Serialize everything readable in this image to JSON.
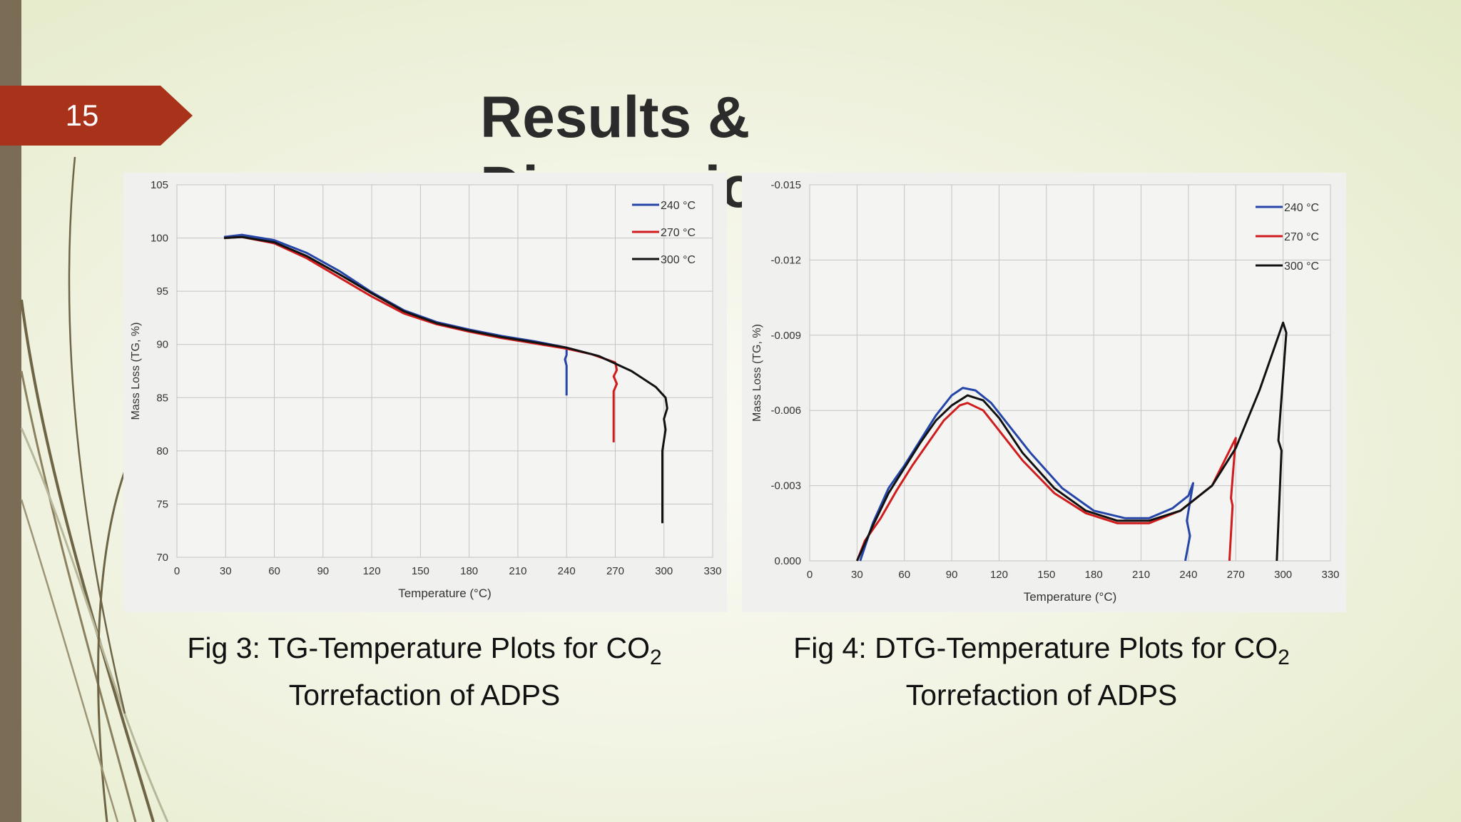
{
  "slide": {
    "number": "15",
    "title": "Results & Discussion"
  },
  "colors": {
    "accent_tab": "#a8321a",
    "left_bar": "#7a6c55",
    "series_240": "#2545a8",
    "series_270": "#d01c1c",
    "series_300": "#111111"
  },
  "captions": [
    {
      "prefix": "Fig 3: TG-Temperature Plots for CO",
      "sub": "2",
      "line2": "Torrefaction of ADPS"
    },
    {
      "prefix": "Fig 4: DTG-Temperature Plots for CO",
      "sub": "2",
      "line2": "Torrefaction of ADPS"
    }
  ],
  "chart_data": [
    {
      "type": "line",
      "xlabel": "Temperature (°C)",
      "ylabel": "Mass Loss (TG, %)",
      "xlim": [
        0,
        330
      ],
      "ylim": [
        70,
        105
      ],
      "xticks": [
        0,
        30,
        60,
        90,
        120,
        150,
        180,
        210,
        240,
        270,
        300,
        330
      ],
      "yticks": [
        70,
        75,
        80,
        85,
        90,
        95,
        100,
        105
      ],
      "tick_decimals": 0,
      "grid": true,
      "legend": "top-right",
      "series": [
        {
          "name": "240 °C",
          "color": "#2545a8",
          "x": [
            29,
            40,
            60,
            80,
            100,
            120,
            140,
            160,
            180,
            200,
            220,
            240,
            240,
            239,
            240,
            240
          ],
          "y": [
            100.1,
            100.3,
            99.8,
            98.6,
            96.9,
            94.9,
            93.2,
            92.1,
            91.4,
            90.8,
            90.3,
            89.7,
            89.0,
            88.6,
            88.0,
            85.2
          ]
        },
        {
          "name": "270 °C",
          "color": "#d01c1c",
          "x": [
            29,
            40,
            60,
            80,
            100,
            120,
            140,
            160,
            180,
            200,
            220,
            240,
            255,
            270,
            271,
            269,
            271,
            269,
            269
          ],
          "y": [
            100.0,
            100.1,
            99.5,
            98.1,
            96.3,
            94.5,
            92.9,
            91.9,
            91.2,
            90.6,
            90.1,
            89.6,
            89.1,
            88.3,
            87.6,
            87.0,
            86.3,
            85.6,
            80.8
          ]
        },
        {
          "name": "300 °C",
          "color": "#111111",
          "x": [
            29,
            40,
            60,
            80,
            100,
            120,
            140,
            160,
            180,
            200,
            220,
            240,
            260,
            280,
            295,
            301,
            302,
            300,
            301,
            299,
            299
          ],
          "y": [
            100.0,
            100.1,
            99.6,
            98.3,
            96.6,
            94.8,
            93.1,
            92.0,
            91.3,
            90.7,
            90.2,
            89.7,
            88.9,
            87.5,
            86.0,
            85.0,
            84.0,
            83.0,
            82.0,
            80.0,
            73.2
          ]
        }
      ]
    },
    {
      "type": "line",
      "xlabel": "Temperature (°C)",
      "ylabel": "Mass Loss (TG, %)",
      "xlim": [
        0,
        330
      ],
      "ylim": [
        0.0,
        -0.015
      ],
      "xticks": [
        0,
        30,
        60,
        90,
        120,
        150,
        180,
        210,
        240,
        270,
        300,
        330
      ],
      "yticks": [
        0.0,
        -0.003,
        -0.006,
        -0.009,
        -0.012,
        -0.015
      ],
      "tick_decimals": 3,
      "grid": true,
      "legend": "top-right",
      "series": [
        {
          "name": "240 °C",
          "color": "#2545a8",
          "x": [
            32,
            40,
            50,
            60,
            70,
            80,
            90,
            97,
            105,
            115,
            125,
            140,
            160,
            180,
            200,
            215,
            230,
            240,
            243,
            239,
            241,
            238
          ],
          "y": [
            0.0,
            -0.0015,
            -0.0029,
            -0.0038,
            -0.0048,
            -0.0058,
            -0.0066,
            -0.0069,
            -0.0068,
            -0.0063,
            -0.0055,
            -0.0043,
            -0.0029,
            -0.002,
            -0.0017,
            -0.0017,
            -0.0021,
            -0.0026,
            -0.0031,
            -0.0016,
            -0.001,
            0.0
          ]
        },
        {
          "name": "270 °C",
          "color": "#d01c1c",
          "x": [
            30,
            35,
            45,
            55,
            65,
            75,
            85,
            95,
            100,
            110,
            120,
            135,
            155,
            175,
            195,
            215,
            235,
            255,
            270,
            267,
            268,
            266
          ],
          "y": [
            0.0,
            -0.0008,
            -0.0017,
            -0.0028,
            -0.0038,
            -0.0047,
            -0.0056,
            -0.0062,
            -0.0063,
            -0.006,
            -0.0052,
            -0.004,
            -0.0027,
            -0.0019,
            -0.0015,
            -0.0015,
            -0.002,
            -0.003,
            -0.0049,
            -0.0025,
            -0.0022,
            0.0
          ]
        },
        {
          "name": "300 °C",
          "color": "#111111",
          "x": [
            30,
            40,
            50,
            60,
            70,
            80,
            90,
            100,
            110,
            120,
            135,
            155,
            175,
            195,
            215,
            235,
            255,
            270,
            285,
            300,
            302,
            297,
            299,
            296
          ],
          "y": [
            0.0,
            -0.0014,
            -0.0027,
            -0.0037,
            -0.0047,
            -0.0056,
            -0.0062,
            -0.0066,
            -0.0064,
            -0.0057,
            -0.0043,
            -0.0029,
            -0.002,
            -0.0016,
            -0.0016,
            -0.002,
            -0.003,
            -0.0045,
            -0.0068,
            -0.0095,
            -0.0091,
            -0.0048,
            -0.0044,
            0.0
          ]
        }
      ]
    }
  ]
}
